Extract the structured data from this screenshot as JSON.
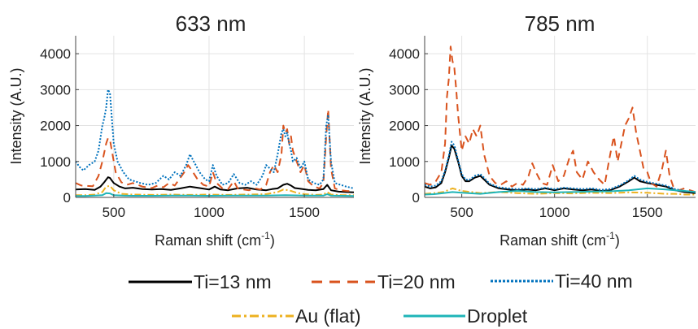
{
  "chart_data": [
    {
      "type": "line",
      "title": "633 nm",
      "xlabel": "Raman shift (cm",
      "xlabel_sup": "-1",
      "xlabel_close": ")",
      "ylabel": "Intensity (A.U.)",
      "xlim": [
        300,
        1760
      ],
      "ylim": [
        0,
        4500
      ],
      "xticks": [
        500,
        1000,
        1500
      ],
      "yticks": [
        0,
        1000,
        2000,
        3000,
        4000
      ],
      "grid": true,
      "series": [
        {
          "name": "Ti=13 nm",
          "x": [
            300,
            350,
            400,
            430,
            450,
            470,
            480,
            500,
            530,
            560,
            600,
            650,
            700,
            750,
            800,
            850,
            900,
            950,
            1000,
            1030,
            1060,
            1100,
            1150,
            1200,
            1250,
            1300,
            1330,
            1360,
            1390,
            1410,
            1430,
            1450,
            1480,
            1520,
            1560,
            1600,
            1620,
            1640,
            1680,
            1720,
            1760
          ],
          "y": [
            220,
            230,
            210,
            300,
            420,
            560,
            540,
            400,
            300,
            250,
            270,
            230,
            220,
            230,
            210,
            250,
            300,
            260,
            220,
            300,
            220,
            200,
            250,
            270,
            220,
            200,
            230,
            250,
            350,
            380,
            330,
            260,
            240,
            210,
            200,
            230,
            350,
            200,
            160,
            150,
            140
          ]
        },
        {
          "name": "Ti=20 nm",
          "x": [
            300,
            330,
            360,
            390,
            420,
            440,
            460,
            470,
            480,
            490,
            510,
            540,
            570,
            600,
            650,
            700,
            730,
            760,
            790,
            820,
            850,
            870,
            890,
            910,
            940,
            970,
            1000,
            1020,
            1040,
            1070,
            1100,
            1130,
            1150,
            1180,
            1210,
            1240,
            1270,
            1300,
            1320,
            1340,
            1360,
            1380,
            1390,
            1400,
            1410,
            1420,
            1430,
            1440,
            1460,
            1480,
            1500,
            1520,
            1550,
            1580,
            1600,
            1615,
            1625,
            1640,
            1660,
            1690,
            1720,
            1760
          ],
          "y": [
            400,
            330,
            320,
            310,
            600,
            1000,
            1500,
            1650,
            1600,
            1300,
            700,
            420,
            350,
            400,
            300,
            260,
            330,
            280,
            400,
            330,
            550,
            700,
            900,
            750,
            500,
            350,
            300,
            700,
            400,
            250,
            230,
            450,
            250,
            220,
            200,
            250,
            220,
            350,
            700,
            900,
            700,
            1200,
            2000,
            1800,
            1900,
            1500,
            1700,
            1300,
            1000,
            700,
            900,
            450,
            300,
            250,
            400,
            1700,
            2450,
            800,
            250,
            200,
            180,
            170
          ]
        },
        {
          "name": "Ti=40 nm",
          "x": [
            300,
            320,
            340,
            370,
            400,
            420,
            440,
            450,
            460,
            470,
            480,
            490,
            500,
            520,
            550,
            580,
            610,
            640,
            680,
            720,
            760,
            790,
            820,
            850,
            880,
            900,
            920,
            950,
            980,
            1000,
            1020,
            1040,
            1070,
            1100,
            1130,
            1160,
            1190,
            1220,
            1250,
            1280,
            1300,
            1320,
            1340,
            1360,
            1380,
            1390,
            1400,
            1410,
            1420,
            1430,
            1440,
            1460,
            1480,
            1500,
            1520,
            1550,
            1580,
            1600,
            1615,
            1625,
            1640,
            1660,
            1690,
            1720,
            1760
          ],
          "y": [
            1000,
            850,
            750,
            900,
            1000,
            1300,
            2000,
            2200,
            2500,
            3000,
            2900,
            2200,
            1500,
            1000,
            700,
            500,
            450,
            400,
            350,
            400,
            600,
            500,
            700,
            600,
            900,
            1200,
            1000,
            700,
            500,
            450,
            900,
            600,
            350,
            400,
            650,
            400,
            350,
            450,
            350,
            600,
            900,
            800,
            700,
            1200,
            1800,
            1900,
            1700,
            1800,
            1500,
            1300,
            1000,
            1100,
            800,
            1000,
            500,
            400,
            350,
            500,
            2000,
            2300,
            1000,
            400,
            350,
            300,
            250
          ]
        },
        {
          "name": "Au (flat)",
          "x": [
            300,
            350,
            400,
            440,
            460,
            480,
            500,
            540,
            600,
            700,
            800,
            900,
            1000,
            1100,
            1200,
            1300,
            1360,
            1390,
            1420,
            1460,
            1500,
            1560,
            1600,
            1620,
            1640,
            1700,
            1760
          ],
          "y": [
            60,
            60,
            80,
            150,
            300,
            320,
            200,
            100,
            80,
            70,
            80,
            70,
            80,
            70,
            80,
            90,
            150,
            220,
            200,
            130,
            90,
            70,
            80,
            150,
            80,
            60,
            60
          ]
        },
        {
          "name": "Droplet",
          "x": [
            300,
            350,
            400,
            440,
            460,
            480,
            500,
            550,
            600,
            700,
            800,
            900,
            1000,
            1100,
            1200,
            1300,
            1400,
            1500,
            1600,
            1620,
            1640,
            1700,
            1760
          ],
          "y": [
            40,
            40,
            50,
            60,
            120,
            110,
            60,
            50,
            45,
            45,
            50,
            50,
            45,
            50,
            50,
            50,
            60,
            50,
            50,
            90,
            50,
            45,
            40
          ]
        }
      ]
    },
    {
      "type": "line",
      "title": "785 nm",
      "xlabel": "Raman shift (cm",
      "xlabel_sup": "-1",
      "xlabel_close": ")",
      "ylabel": "Intensity (A.U.)",
      "xlim": [
        300,
        1760
      ],
      "ylim": [
        0,
        4500
      ],
      "xticks": [
        500,
        1000,
        1500
      ],
      "yticks": [
        0,
        1000,
        2000,
        3000,
        4000
      ],
      "grid": true,
      "series": [
        {
          "name": "Ti=13 nm",
          "x": [
            300,
            330,
            360,
            390,
            410,
            430,
            445,
            460,
            480,
            500,
            520,
            540,
            570,
            600,
            620,
            650,
            700,
            750,
            800,
            850,
            900,
            950,
            1000,
            1050,
            1100,
            1150,
            1200,
            1250,
            1300,
            1350,
            1400,
            1430,
            1460,
            1500,
            1550,
            1600,
            1650,
            1700,
            1760
          ],
          "y": [
            300,
            250,
            280,
            400,
            700,
            1100,
            1450,
            1350,
            1000,
            600,
            450,
            450,
            550,
            600,
            500,
            350,
            250,
            220,
            200,
            220,
            200,
            250,
            200,
            250,
            220,
            200,
            220,
            180,
            200,
            300,
            450,
            550,
            450,
            400,
            350,
            300,
            200,
            150,
            120
          ]
        },
        {
          "name": "Ti=20 nm",
          "x": [
            300,
            330,
            360,
            390,
            410,
            420,
            430,
            440,
            450,
            460,
            470,
            480,
            490,
            500,
            520,
            540,
            560,
            580,
            600,
            620,
            650,
            680,
            710,
            740,
            770,
            800,
            830,
            860,
            880,
            900,
            930,
            960,
            990,
            1020,
            1050,
            1080,
            1100,
            1120,
            1150,
            1180,
            1210,
            1240,
            1270,
            1300,
            1320,
            1340,
            1360,
            1380,
            1400,
            1420,
            1440,
            1460,
            1480,
            1500,
            1520,
            1550,
            1580,
            1600,
            1620,
            1640,
            1670,
            1700,
            1730,
            1760
          ],
          "y": [
            400,
            350,
            450,
            700,
            1500,
            2800,
            3300,
            4200,
            3800,
            3600,
            3000,
            2300,
            1800,
            1300,
            1700,
            1500,
            1900,
            1700,
            2000,
            1200,
            600,
            400,
            350,
            450,
            300,
            400,
            350,
            600,
            950,
            700,
            400,
            350,
            900,
            450,
            600,
            1100,
            1300,
            700,
            500,
            1000,
            700,
            500,
            350,
            1200,
            1700,
            1000,
            1500,
            2000,
            2200,
            2500,
            1800,
            1300,
            800,
            700,
            400,
            300,
            800,
            1300,
            600,
            300,
            200,
            250,
            200,
            150
          ]
        },
        {
          "name": "Ti=40 nm",
          "x": [
            300,
            330,
            360,
            390,
            410,
            430,
            445,
            460,
            480,
            500,
            520,
            540,
            570,
            600,
            620,
            650,
            700,
            750,
            800,
            850,
            900,
            950,
            1000,
            1050,
            1100,
            1150,
            1200,
            1250,
            1300,
            1350,
            1400,
            1430,
            1460,
            1500,
            1550,
            1600,
            1650,
            1700,
            1760
          ],
          "y": [
            350,
            300,
            330,
            450,
            750,
            1150,
            1550,
            1450,
            1050,
            650,
            500,
            480,
            600,
            650,
            550,
            380,
            280,
            250,
            230,
            250,
            230,
            270,
            230,
            270,
            250,
            230,
            250,
            210,
            230,
            330,
            480,
            600,
            500,
            430,
            380,
            330,
            230,
            180,
            150
          ]
        },
        {
          "name": "Au (flat)",
          "x": [
            300,
            350,
            400,
            450,
            500,
            600,
            700,
            800,
            900,
            1000,
            1100,
            1200,
            1300,
            1400,
            1500,
            1600,
            1650,
            1700,
            1760
          ],
          "y": [
            100,
            120,
            150,
            250,
            180,
            120,
            150,
            120,
            100,
            120,
            110,
            130,
            120,
            140,
            130,
            100,
            100,
            80,
            80
          ]
        },
        {
          "name": "Droplet",
          "x": [
            300,
            350,
            400,
            450,
            500,
            600,
            700,
            800,
            900,
            1000,
            1100,
            1200,
            1300,
            1400,
            1500,
            1600,
            1650,
            1700,
            1760
          ],
          "y": [
            80,
            90,
            120,
            150,
            130,
            100,
            150,
            180,
            150,
            140,
            150,
            160,
            170,
            200,
            250,
            220,
            200,
            180,
            150
          ]
        }
      ]
    }
  ],
  "legend": {
    "placement": "bottom",
    "items": [
      {
        "label": "Ti=13 nm",
        "color": "#000000",
        "style": "solid"
      },
      {
        "label": "Ti=20 nm",
        "color": "#d9531e",
        "style": "dashed"
      },
      {
        "label": "Ti=40 nm",
        "color": "#0072bd",
        "style": "dotted"
      },
      {
        "label": "Au (flat)",
        "color": "#edb120",
        "style": "dashdot"
      },
      {
        "label": "Droplet",
        "color": "#1fb5b8",
        "style": "solid"
      }
    ]
  },
  "series_styles": {
    "Ti=13 nm": {
      "color": "#000000",
      "dash": ""
    },
    "Ti=20 nm": {
      "color": "#d9531e",
      "dash": "9 6"
    },
    "Ti=40 nm": {
      "color": "#0072bd",
      "dash": "2 2"
    },
    "Au (flat)": {
      "color": "#edb120",
      "dash": "8 3 2 3"
    },
    "Droplet": {
      "color": "#1fb5b8",
      "dash": ""
    }
  }
}
